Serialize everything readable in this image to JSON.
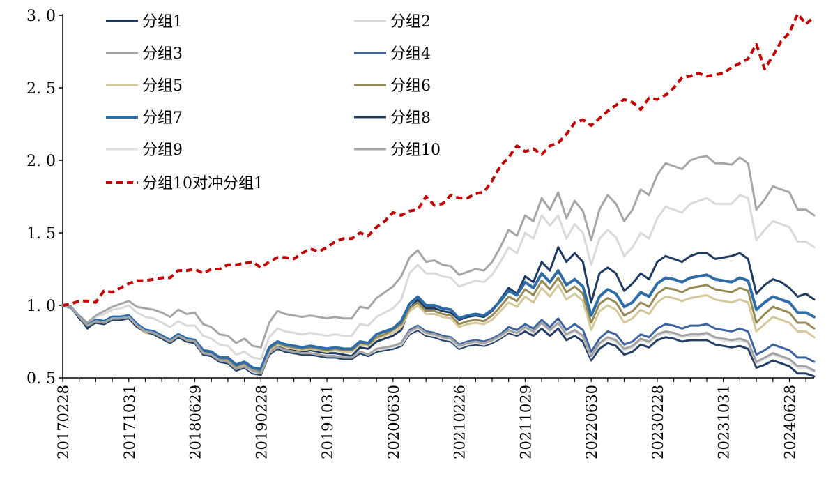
{
  "chart_data": {
    "type": "line",
    "title": "",
    "xlabel": "",
    "ylabel": "",
    "ylim": [
      0.5,
      3.0
    ],
    "yticks": [
      "3. 0",
      "2. 5",
      "2. 0",
      "1. 5",
      "1. 0",
      "0. 5"
    ],
    "yticks_values": [
      3.0,
      2.5,
      2.0,
      1.5,
      1.0,
      0.5
    ],
    "xticks": [
      "20170228",
      "20171031",
      "20180629",
      "20190228",
      "20191031",
      "20200630",
      "20210226",
      "20211029",
      "20220630",
      "20230228",
      "20231031",
      "20240628"
    ],
    "xticks_index": [
      0,
      8,
      16,
      24,
      32,
      40,
      48,
      56,
      64,
      72,
      80,
      88
    ],
    "x_start": "20170228",
    "x_end": "20240930",
    "grid": false,
    "legend_position": "top-left",
    "series": [
      {
        "name": "分组1",
        "color": "#1f3a5f",
        "dash": false,
        "width": 3,
        "values": [
          1.0,
          0.99,
          0.92,
          0.84,
          0.89,
          0.88,
          0.91,
          0.92,
          0.93,
          0.87,
          0.83,
          0.82,
          0.79,
          0.76,
          0.8,
          0.77,
          0.76,
          0.68,
          0.67,
          0.63,
          0.63,
          0.57,
          0.59,
          0.55,
          0.54,
          0.67,
          0.72,
          0.7,
          0.69,
          0.68,
          0.69,
          0.68,
          0.67,
          0.67,
          0.66,
          0.65,
          0.71,
          0.7,
          0.75,
          0.77,
          0.79,
          0.83,
          0.98,
          1.04,
          0.98,
          0.98,
          0.96,
          0.95,
          0.9,
          0.92,
          0.93,
          0.92,
          0.96,
          1.04,
          1.12,
          1.08,
          1.2,
          1.16,
          1.3,
          1.24,
          1.4,
          1.3,
          1.36,
          1.3,
          1.02,
          1.22,
          1.26,
          1.22,
          1.1,
          1.15,
          1.22,
          1.18,
          1.3,
          1.34,
          1.32,
          1.3,
          1.34,
          1.36,
          1.36,
          1.32,
          1.33,
          1.34,
          1.36,
          1.32,
          1.08,
          1.14,
          1.18,
          1.16,
          1.12,
          1.06,
          1.08,
          1.04
        ]
      },
      {
        "name": "分组2",
        "color": "#d9d9d9",
        "dash": false,
        "width": 3,
        "values": [
          1.0,
          0.98,
          0.92,
          0.87,
          0.92,
          0.94,
          0.97,
          0.98,
          1.0,
          0.95,
          0.92,
          0.91,
          0.88,
          0.85,
          0.89,
          0.86,
          0.86,
          0.79,
          0.77,
          0.73,
          0.72,
          0.66,
          0.68,
          0.64,
          0.63,
          0.78,
          0.84,
          0.82,
          0.81,
          0.8,
          0.81,
          0.8,
          0.79,
          0.8,
          0.79,
          0.79,
          0.87,
          0.86,
          0.92,
          0.95,
          0.98,
          1.04,
          1.22,
          1.28,
          1.22,
          1.22,
          1.2,
          1.19,
          1.13,
          1.15,
          1.17,
          1.16,
          1.21,
          1.3,
          1.4,
          1.36,
          1.5,
          1.46,
          1.62,
          1.55,
          1.62,
          1.46,
          1.56,
          1.5,
          1.28,
          1.46,
          1.52,
          1.47,
          1.34,
          1.4,
          1.5,
          1.46,
          1.6,
          1.68,
          1.66,
          1.64,
          1.7,
          1.72,
          1.74,
          1.7,
          1.7,
          1.7,
          1.76,
          1.74,
          1.45,
          1.52,
          1.58,
          1.56,
          1.54,
          1.44,
          1.44,
          1.4
        ]
      },
      {
        "name": "分组3",
        "color": "#a6a6a6",
        "dash": false,
        "width": 3,
        "values": [
          1.0,
          0.98,
          0.93,
          0.88,
          0.93,
          0.96,
          0.99,
          1.01,
          1.03,
          0.99,
          0.98,
          0.97,
          0.95,
          0.92,
          0.97,
          0.94,
          0.95,
          0.87,
          0.85,
          0.8,
          0.79,
          0.74,
          0.77,
          0.72,
          0.71,
          0.88,
          0.96,
          0.94,
          0.93,
          0.92,
          0.93,
          0.92,
          0.91,
          0.92,
          0.91,
          0.91,
          0.99,
          0.98,
          1.05,
          1.09,
          1.13,
          1.2,
          1.33,
          1.38,
          1.3,
          1.31,
          1.28,
          1.27,
          1.21,
          1.23,
          1.25,
          1.24,
          1.3,
          1.4,
          1.52,
          1.48,
          1.62,
          1.58,
          1.74,
          1.66,
          1.78,
          1.6,
          1.72,
          1.65,
          1.45,
          1.66,
          1.76,
          1.7,
          1.58,
          1.66,
          1.8,
          1.76,
          1.9,
          1.98,
          1.96,
          1.94,
          2.0,
          2.02,
          2.03,
          1.98,
          1.98,
          1.97,
          2.02,
          1.98,
          1.66,
          1.73,
          1.82,
          1.8,
          1.78,
          1.66,
          1.66,
          1.62
        ]
      },
      {
        "name": "分组4",
        "color": "#3e64a0",
        "dash": false,
        "width": 3,
        "values": [
          1.0,
          0.99,
          0.92,
          0.85,
          0.89,
          0.88,
          0.91,
          0.91,
          0.92,
          0.86,
          0.83,
          0.81,
          0.78,
          0.75,
          0.79,
          0.76,
          0.75,
          0.67,
          0.66,
          0.62,
          0.61,
          0.56,
          0.58,
          0.55,
          0.53,
          0.67,
          0.71,
          0.69,
          0.68,
          0.67,
          0.67,
          0.66,
          0.65,
          0.65,
          0.64,
          0.64,
          0.68,
          0.66,
          0.69,
          0.7,
          0.72,
          0.74,
          0.83,
          0.86,
          0.82,
          0.81,
          0.79,
          0.78,
          0.73,
          0.75,
          0.76,
          0.75,
          0.77,
          0.8,
          0.85,
          0.83,
          0.87,
          0.84,
          0.9,
          0.85,
          0.91,
          0.83,
          0.87,
          0.83,
          0.68,
          0.77,
          0.82,
          0.8,
          0.73,
          0.75,
          0.8,
          0.78,
          0.84,
          0.87,
          0.86,
          0.84,
          0.86,
          0.86,
          0.87,
          0.84,
          0.83,
          0.82,
          0.84,
          0.82,
          0.66,
          0.69,
          0.73,
          0.71,
          0.69,
          0.64,
          0.64,
          0.61
        ]
      },
      {
        "name": "分组5",
        "color": "#d4c89a",
        "dash": false,
        "width": 3,
        "values": [
          1.0,
          0.99,
          0.92,
          0.86,
          0.88,
          0.87,
          0.9,
          0.9,
          0.91,
          0.85,
          0.81,
          0.8,
          0.77,
          0.74,
          0.78,
          0.75,
          0.74,
          0.67,
          0.66,
          0.62,
          0.62,
          0.57,
          0.59,
          0.56,
          0.55,
          0.69,
          0.73,
          0.71,
          0.7,
          0.69,
          0.7,
          0.69,
          0.68,
          0.69,
          0.68,
          0.68,
          0.73,
          0.72,
          0.77,
          0.79,
          0.81,
          0.85,
          0.96,
          1.0,
          0.94,
          0.94,
          0.92,
          0.91,
          0.85,
          0.87,
          0.88,
          0.87,
          0.9,
          0.96,
          1.02,
          0.99,
          1.06,
          1.02,
          1.12,
          1.06,
          1.14,
          1.04,
          1.08,
          1.03,
          0.83,
          0.96,
          1.0,
          0.97,
          0.88,
          0.91,
          0.97,
          0.94,
          1.02,
          1.06,
          1.05,
          1.03,
          1.05,
          1.06,
          1.07,
          1.04,
          1.03,
          1.02,
          1.04,
          1.02,
          0.82,
          0.87,
          0.92,
          0.9,
          0.88,
          0.82,
          0.82,
          0.78
        ]
      },
      {
        "name": "分组6",
        "color": "#958a56",
        "dash": false,
        "width": 3,
        "values": [
          1.0,
          0.99,
          0.92,
          0.86,
          0.89,
          0.88,
          0.91,
          0.91,
          0.92,
          0.86,
          0.82,
          0.81,
          0.78,
          0.75,
          0.79,
          0.76,
          0.75,
          0.68,
          0.67,
          0.63,
          0.63,
          0.58,
          0.6,
          0.56,
          0.55,
          0.7,
          0.74,
          0.72,
          0.71,
          0.7,
          0.71,
          0.7,
          0.69,
          0.7,
          0.69,
          0.69,
          0.74,
          0.73,
          0.78,
          0.8,
          0.83,
          0.87,
          0.98,
          1.02,
          0.96,
          0.96,
          0.94,
          0.93,
          0.87,
          0.89,
          0.9,
          0.89,
          0.93,
          0.99,
          1.06,
          1.03,
          1.11,
          1.07,
          1.17,
          1.11,
          1.19,
          1.09,
          1.13,
          1.08,
          0.88,
          1.01,
          1.05,
          1.02,
          0.93,
          0.96,
          1.02,
          0.99,
          1.08,
          1.12,
          1.11,
          1.09,
          1.12,
          1.13,
          1.14,
          1.11,
          1.1,
          1.09,
          1.12,
          1.1,
          0.88,
          0.94,
          0.99,
          0.97,
          0.95,
          0.88,
          0.88,
          0.84
        ]
      },
      {
        "name": "分组7",
        "color": "#2e6ca8",
        "dash": false,
        "width": 4,
        "values": [
          1.0,
          0.99,
          0.92,
          0.86,
          0.9,
          0.89,
          0.92,
          0.92,
          0.93,
          0.87,
          0.83,
          0.82,
          0.79,
          0.76,
          0.8,
          0.77,
          0.76,
          0.69,
          0.68,
          0.64,
          0.64,
          0.59,
          0.61,
          0.57,
          0.56,
          0.71,
          0.75,
          0.73,
          0.72,
          0.71,
          0.72,
          0.71,
          0.7,
          0.71,
          0.7,
          0.7,
          0.75,
          0.74,
          0.8,
          0.82,
          0.84,
          0.89,
          1.01,
          1.06,
          1.0,
          1.0,
          0.98,
          0.97,
          0.91,
          0.93,
          0.94,
          0.93,
          0.97,
          1.03,
          1.1,
          1.07,
          1.16,
          1.12,
          1.22,
          1.16,
          1.24,
          1.14,
          1.18,
          1.13,
          0.93,
          1.06,
          1.11,
          1.08,
          0.99,
          1.02,
          1.09,
          1.06,
          1.15,
          1.19,
          1.18,
          1.16,
          1.19,
          1.2,
          1.21,
          1.18,
          1.17,
          1.16,
          1.19,
          1.17,
          0.97,
          1.02,
          1.06,
          1.04,
          1.02,
          0.95,
          0.95,
          0.92
        ]
      },
      {
        "name": "分组8",
        "color": "#243f63",
        "dash": false,
        "width": 3,
        "values": [
          1.0,
          0.99,
          0.91,
          0.85,
          0.88,
          0.87,
          0.9,
          0.9,
          0.91,
          0.85,
          0.82,
          0.8,
          0.77,
          0.74,
          0.78,
          0.75,
          0.74,
          0.66,
          0.65,
          0.61,
          0.6,
          0.55,
          0.57,
          0.53,
          0.52,
          0.66,
          0.7,
          0.68,
          0.67,
          0.66,
          0.66,
          0.65,
          0.64,
          0.64,
          0.63,
          0.63,
          0.67,
          0.65,
          0.68,
          0.69,
          0.7,
          0.72,
          0.8,
          0.83,
          0.79,
          0.78,
          0.76,
          0.75,
          0.7,
          0.72,
          0.73,
          0.72,
          0.74,
          0.77,
          0.81,
          0.79,
          0.82,
          0.79,
          0.84,
          0.79,
          0.84,
          0.76,
          0.79,
          0.75,
          0.62,
          0.7,
          0.74,
          0.72,
          0.66,
          0.68,
          0.73,
          0.71,
          0.76,
          0.78,
          0.77,
          0.75,
          0.76,
          0.76,
          0.76,
          0.73,
          0.72,
          0.71,
          0.72,
          0.7,
          0.57,
          0.59,
          0.62,
          0.6,
          0.58,
          0.53,
          0.53,
          0.51
        ]
      },
      {
        "name": "分组9",
        "color": "#e0e0e0",
        "dash": false,
        "width": 3,
        "values": [
          1.0,
          0.99,
          0.92,
          0.86,
          0.89,
          0.88,
          0.91,
          0.91,
          0.92,
          0.86,
          0.82,
          0.81,
          0.78,
          0.75,
          0.79,
          0.76,
          0.75,
          0.67,
          0.66,
          0.62,
          0.61,
          0.56,
          0.58,
          0.54,
          0.53,
          0.67,
          0.71,
          0.69,
          0.68,
          0.67,
          0.67,
          0.66,
          0.65,
          0.65,
          0.64,
          0.64,
          0.68,
          0.66,
          0.69,
          0.7,
          0.71,
          0.73,
          0.81,
          0.84,
          0.8,
          0.79,
          0.77,
          0.76,
          0.71,
          0.73,
          0.74,
          0.73,
          0.75,
          0.78,
          0.82,
          0.8,
          0.84,
          0.81,
          0.87,
          0.82,
          0.87,
          0.79,
          0.82,
          0.78,
          0.64,
          0.73,
          0.77,
          0.75,
          0.69,
          0.71,
          0.76,
          0.74,
          0.79,
          0.81,
          0.8,
          0.78,
          0.79,
          0.79,
          0.8,
          0.77,
          0.76,
          0.75,
          0.76,
          0.74,
          0.6,
          0.63,
          0.66,
          0.64,
          0.62,
          0.57,
          0.57,
          0.54
        ]
      },
      {
        "name": "分组10",
        "color": "#a3a3a3",
        "dash": false,
        "width": 3,
        "values": [
          1.0,
          0.99,
          0.92,
          0.86,
          0.89,
          0.88,
          0.91,
          0.91,
          0.92,
          0.86,
          0.82,
          0.81,
          0.78,
          0.75,
          0.79,
          0.76,
          0.75,
          0.67,
          0.66,
          0.62,
          0.61,
          0.56,
          0.58,
          0.55,
          0.53,
          0.67,
          0.71,
          0.69,
          0.68,
          0.67,
          0.67,
          0.66,
          0.65,
          0.65,
          0.64,
          0.64,
          0.68,
          0.66,
          0.7,
          0.71,
          0.72,
          0.74,
          0.82,
          0.85,
          0.81,
          0.8,
          0.78,
          0.77,
          0.72,
          0.74,
          0.75,
          0.74,
          0.76,
          0.79,
          0.83,
          0.81,
          0.85,
          0.82,
          0.88,
          0.83,
          0.88,
          0.8,
          0.83,
          0.79,
          0.65,
          0.74,
          0.78,
          0.76,
          0.7,
          0.72,
          0.77,
          0.75,
          0.8,
          0.82,
          0.81,
          0.79,
          0.8,
          0.8,
          0.81,
          0.78,
          0.77,
          0.76,
          0.77,
          0.75,
          0.61,
          0.64,
          0.67,
          0.65,
          0.63,
          0.58,
          0.58,
          0.55
        ]
      },
      {
        "name": "分组10对冲分组1",
        "color": "#c00000",
        "dash": true,
        "width": 4,
        "values": [
          1.0,
          1.01,
          1.03,
          1.03,
          1.02,
          1.1,
          1.09,
          1.12,
          1.15,
          1.17,
          1.17,
          1.18,
          1.19,
          1.19,
          1.24,
          1.24,
          1.25,
          1.22,
          1.25,
          1.25,
          1.28,
          1.28,
          1.29,
          1.3,
          1.26,
          1.3,
          1.33,
          1.33,
          1.32,
          1.36,
          1.39,
          1.37,
          1.4,
          1.44,
          1.46,
          1.46,
          1.5,
          1.48,
          1.54,
          1.58,
          1.64,
          1.62,
          1.65,
          1.66,
          1.75,
          1.69,
          1.7,
          1.76,
          1.74,
          1.74,
          1.77,
          1.78,
          1.86,
          1.96,
          2.02,
          2.1,
          2.06,
          2.08,
          2.04,
          2.1,
          2.12,
          2.18,
          2.26,
          2.28,
          2.24,
          2.29,
          2.34,
          2.38,
          2.42,
          2.4,
          2.35,
          2.43,
          2.42,
          2.45,
          2.5,
          2.57,
          2.58,
          2.6,
          2.58,
          2.59,
          2.6,
          2.64,
          2.67,
          2.7,
          2.8,
          2.63,
          2.72,
          2.82,
          2.88,
          3.01,
          2.94,
          2.99
        ]
      }
    ]
  }
}
